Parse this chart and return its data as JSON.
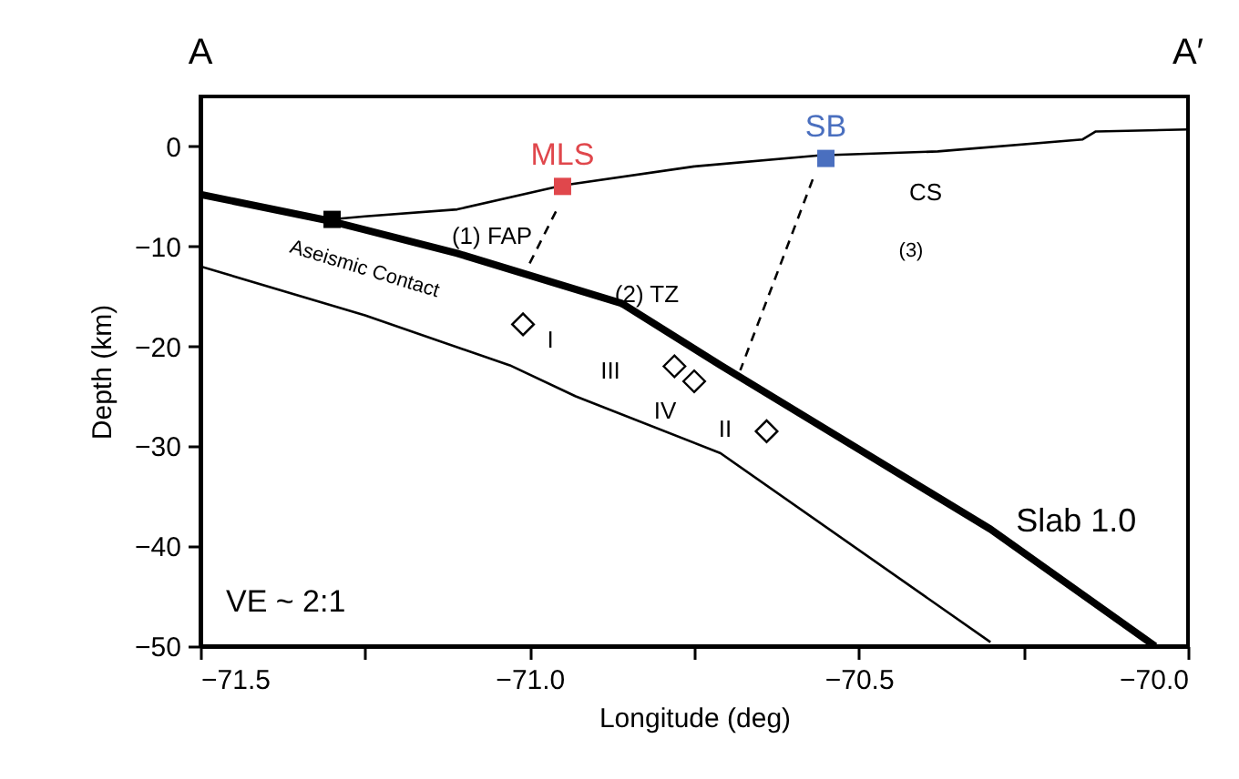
{
  "chart_data": {
    "type": "line",
    "xlabel": "Longitude (deg)",
    "ylabel": "Depth (km)",
    "xlim": [
      -71.5,
      -70.0
    ],
    "ylim": [
      -50,
      5
    ],
    "xticks": [
      {
        "value": -71.5,
        "label": "−71.5"
      },
      {
        "value": -71.25,
        "label": null
      },
      {
        "value": -71.0,
        "label": "−71.0"
      },
      {
        "value": -70.75,
        "label": null
      },
      {
        "value": -70.5,
        "label": "−70.5"
      },
      {
        "value": -70.25,
        "label": null
      },
      {
        "value": -70.0,
        "label": "−70.0"
      }
    ],
    "yticks": [
      -50,
      -40,
      -30,
      -20,
      -10,
      0
    ],
    "grid": false,
    "series": [
      {
        "color": "#000000",
        "x": [
          -71.5,
          -71.3,
          -71.25,
          -71.11,
          -70.95,
          -70.75,
          -70.56,
          -70.38,
          -70.16,
          -70.14,
          -70.0
        ],
        "values": [
          -4.8,
          -7.3,
          -7.0,
          -6.3,
          -3.9,
          -2.0,
          -0.9,
          -0.5,
          0.7,
          1.5,
          1.7
        ]
      },
      {
        "type": "line",
        "name": "Slab 1.0",
        "color": "#000000",
        "x": [
          -71.5,
          -71.3,
          -71.11,
          -70.86,
          -70.71,
          -70.5,
          -70.3,
          -70.05
        ],
        "values": [
          -4.8,
          -7.5,
          -10.7,
          -15.7,
          -21.9,
          -30.3,
          -38.3,
          -50
        ]
      },
      {
        "type": "line",
        "color": "#000000",
        "x": [
          -71.5,
          -71.25,
          -71.03,
          -70.93,
          -70.71,
          -70.3
        ],
        "values": [
          -12,
          -16.9,
          -21.9,
          -25,
          -30.7,
          -49.6
        ]
      },
      {
        "type": "line",
        "color": "#000000",
        "line_style": "dashed",
        "x": [
          -70.96,
          -71.0
        ],
        "values": [
          -6.5,
          -11.7
        ]
      },
      {
        "type": "line",
        "color": "#000000",
        "line_style": "dashed",
        "x": [
          -70.57,
          -70.68
        ],
        "values": [
          -3.3,
          -22.4
        ]
      },
      {
        "type": "scatter",
        "color": "#000000",
        "marker": "diamond",
        "x": [
          -71.01,
          -70.78,
          -70.75,
          -70.64
        ],
        "values": [
          -17.8,
          -22.0,
          -23.5,
          -28.5
        ]
      },
      {
        "type": "scatter",
        "color": "#000000",
        "marker": "square",
        "x": [
          -71.3
        ],
        "values": [
          -7.3
        ]
      },
      {
        "type": "scatter",
        "name": "MLS",
        "color": "#e0474c",
        "marker": "square",
        "x": [
          -70.95
        ],
        "values": [
          -4.0
        ]
      },
      {
        "type": "scatter",
        "name": "SB",
        "color": "#4a6fbf",
        "marker": "square",
        "x": [
          -70.55
        ],
        "values": [
          -1.2
        ]
      }
    ],
    "annotations": [
      "A",
      "A′",
      "VE ~ 2:1",
      "(1) FAP",
      "(2) TZ",
      "CS",
      "(3)",
      "Aseismic Contact",
      "I",
      "III",
      "IV",
      "II"
    ]
  }
}
